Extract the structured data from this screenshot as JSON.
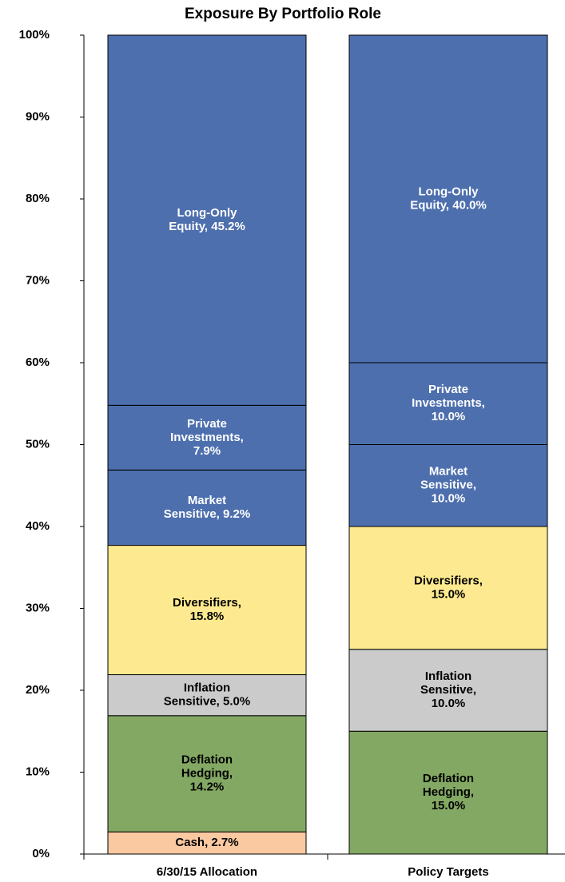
{
  "chart_data": {
    "type": "stacked_bar",
    "title": "Exposure By Portfolio Role",
    "categories": [
      "6/30/15 Allocation",
      "Policy Targets"
    ],
    "series": [
      {
        "name": "Cash",
        "color": "#fbc9a1",
        "text_color": "#000000",
        "values": [
          2.7,
          null
        ],
        "value_labels": [
          [
            "Cash, 2.7%"
          ],
          null
        ]
      },
      {
        "name": "Deflation Hedging",
        "color": "#83a863",
        "text_color": "#000000",
        "values": [
          14.2,
          15.0
        ],
        "value_labels": [
          [
            "Deflation",
            "Hedging,",
            "14.2%"
          ],
          [
            "Deflation",
            "Hedging,",
            "15.0%"
          ]
        ]
      },
      {
        "name": "Inflation Sensitive",
        "color": "#cbcbcb",
        "text_color": "#000000",
        "values": [
          5.0,
          10.0
        ],
        "value_labels": [
          [
            "Inflation",
            "Sensitive, 5.0%"
          ],
          [
            "Inflation",
            "Sensitive,",
            "10.0%"
          ]
        ]
      },
      {
        "name": "Diversifiers",
        "color": "#fde98f",
        "text_color": "#000000",
        "values": [
          15.8,
          15.0
        ],
        "value_labels": [
          [
            "Diversifiers,",
            "15.8%"
          ],
          [
            "Diversifiers,",
            "15.0%"
          ]
        ]
      },
      {
        "name": "Market Sensitive",
        "color": "#4d6fae",
        "text_color": "#ffffff",
        "values": [
          9.2,
          10.0
        ],
        "value_labels": [
          [
            "Market",
            "Sensitive, 9.2%"
          ],
          [
            "Market",
            "Sensitive,",
            "10.0%"
          ]
        ]
      },
      {
        "name": "Private Investments",
        "color": "#4d6fae",
        "text_color": "#ffffff",
        "values": [
          7.9,
          10.0
        ],
        "value_labels": [
          [
            "Private",
            "Investments,",
            "7.9%"
          ],
          [
            "Private",
            "Investments,",
            "10.0%"
          ]
        ]
      },
      {
        "name": "Long-Only Equity",
        "color": "#4d6fae",
        "text_color": "#ffffff",
        "values": [
          45.2,
          40.0
        ],
        "value_labels": [
          [
            "Long-Only",
            "Equity, 45.2%"
          ],
          [
            "Long-Only",
            "Equity, 40.0%"
          ]
        ]
      }
    ],
    "ylim": [
      0,
      100
    ],
    "yticks": [
      {
        "value": 0,
        "label": "0%"
      },
      {
        "value": 10,
        "label": "10%"
      },
      {
        "value": 20,
        "label": "20%"
      },
      {
        "value": 30,
        "label": "30%"
      },
      {
        "value": 40,
        "label": "40%"
      },
      {
        "value": 50,
        "label": "50%"
      },
      {
        "value": 60,
        "label": "60%"
      },
      {
        "value": 70,
        "label": "70%"
      },
      {
        "value": 80,
        "label": "80%"
      },
      {
        "value": 90,
        "label": "90%"
      },
      {
        "value": 100,
        "label": "100%"
      }
    ],
    "grid": false
  }
}
